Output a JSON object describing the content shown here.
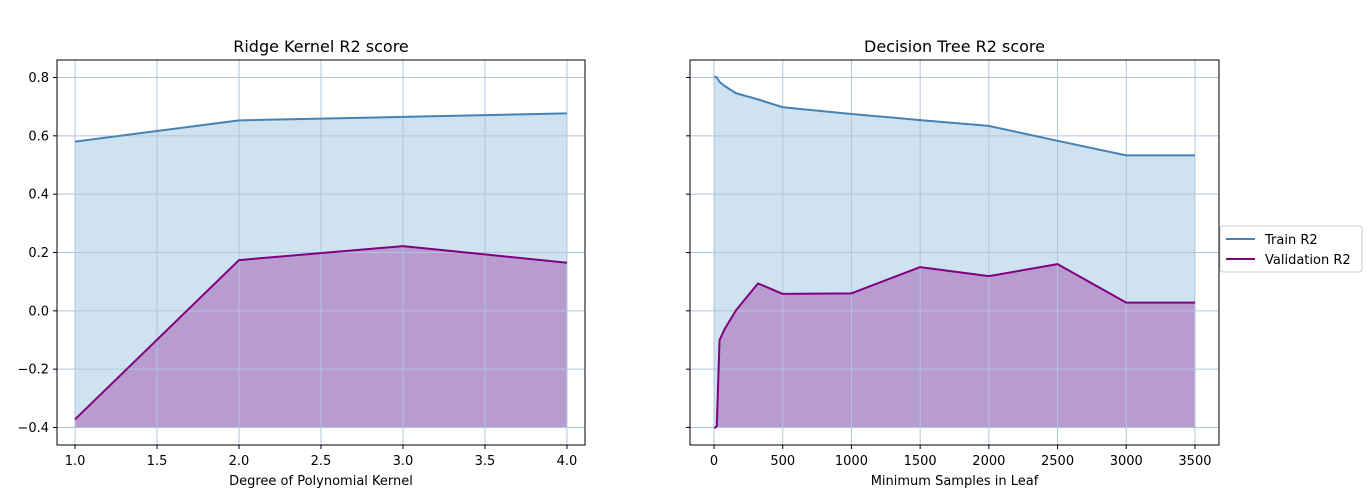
{
  "colors": {
    "train": "#4682b4",
    "validation": "#800080",
    "train_fill": "#cfe2ef",
    "validation_fill": "#b89ccf",
    "grid": "#b0c4de"
  },
  "legend": {
    "placement": "right",
    "train_label": "Train R2",
    "validation_label": "Validation R2"
  },
  "chart_data": [
    {
      "type": "area",
      "title": "Ridge Kernel R2 score",
      "xlabel": "Degree of Polynomial Kernel",
      "ylabel": "",
      "grid": true,
      "xlim": [
        0.89,
        4.11
      ],
      "ylim": [
        -0.46,
        0.86
      ],
      "fill_baseline": -0.4,
      "xticks": [
        1.0,
        1.5,
        2.0,
        2.5,
        3.0,
        3.5,
        4.0
      ],
      "xtick_labels": [
        "1.0",
        "1.5",
        "2.0",
        "2.5",
        "3.0",
        "3.5",
        "4.0"
      ],
      "yticks": [
        0.8,
        0.6,
        0.4,
        0.2,
        0.0,
        -0.2,
        -0.4
      ],
      "ytick_labels": [
        "0.8",
        "0.6",
        "0.4",
        "0.2",
        "0.0",
        "−0.2",
        "−0.4"
      ],
      "show_yticklabels": true,
      "series": [
        {
          "name": "Train R2",
          "x": [
            1,
            2,
            3,
            4
          ],
          "y": [
            0.58,
            0.653,
            0.665,
            0.677
          ]
        },
        {
          "name": "Validation R2",
          "x": [
            1,
            2,
            3,
            4
          ],
          "y": [
            -0.372,
            0.174,
            0.222,
            0.165
          ]
        }
      ]
    },
    {
      "type": "area",
      "title": "Decision Tree R2 score",
      "xlabel": "Minimum Samples in Leaf",
      "ylabel": "",
      "grid": true,
      "xlim": [
        -175,
        3675
      ],
      "ylim": [
        -0.46,
        0.86
      ],
      "fill_baseline": -0.4,
      "xticks": [
        0,
        500,
        1000,
        1500,
        2000,
        2500,
        3000,
        3500
      ],
      "xtick_labels": [
        "0",
        "500",
        "1000",
        "1500",
        "2000",
        "2500",
        "3000",
        "3500"
      ],
      "yticks": [
        0.8,
        0.6,
        0.4,
        0.2,
        0.0,
        -0.2,
        -0.4
      ],
      "ytick_labels": [],
      "show_yticklabels": false,
      "series": [
        {
          "name": "Train R2",
          "x": [
            1,
            10,
            20,
            40,
            80,
            160,
            320,
            500,
            1000,
            1500,
            2000,
            2500,
            3000,
            3500
          ],
          "y": [
            0.802,
            0.802,
            0.8,
            0.785,
            0.77,
            0.746,
            0.725,
            0.698,
            0.675,
            0.654,
            0.634,
            0.583,
            0.533,
            0.533
          ]
        },
        {
          "name": "Validation R2",
          "x": [
            1,
            10,
            20,
            40,
            80,
            160,
            320,
            500,
            1000,
            1500,
            2000,
            2500,
            3000,
            3500
          ],
          "y": [
            -0.4,
            -0.4,
            -0.395,
            -0.1,
            -0.06,
            0.002,
            0.094,
            0.058,
            0.06,
            0.15,
            0.119,
            0.16,
            0.028,
            0.028
          ]
        }
      ]
    }
  ]
}
